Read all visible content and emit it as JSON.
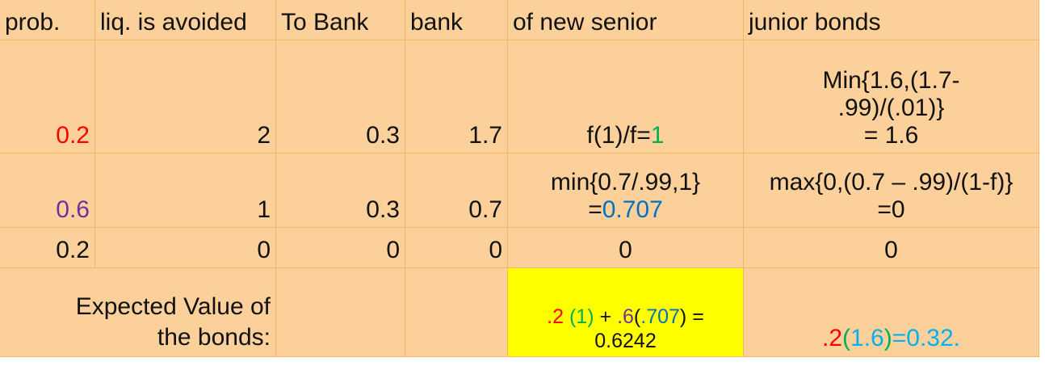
{
  "header": {
    "c1": "prob.",
    "c2": "liq. is avoided",
    "c3": "To Bank",
    "c4": "bank",
    "c5": "of new senior",
    "c6": "junior bonds"
  },
  "rows": [
    {
      "prob": "0.2",
      "liq": "2",
      "tobank": "0.3",
      "bank": "1.7",
      "senior": "f(1)/f=",
      "senior_val": "1",
      "junior_l1": "Min{1.6,(1.7-",
      "junior_l2": ".99)/(.01)}",
      "junior_l3": "= 1.6"
    },
    {
      "prob": "0.6",
      "liq": "1",
      "tobank": "0.3",
      "bank": "0.7",
      "senior_l1": "min{0.7/.99,1}",
      "senior_eq": "=",
      "senior_val": "0.707",
      "junior_l1": "max{0,(0.7 – .99)/(1-f)}",
      "junior_l2": "=0"
    },
    {
      "prob": "0.2",
      "liq": "0",
      "tobank": "0",
      "bank": "0",
      "senior": "0",
      "junior": "0"
    }
  ],
  "expected": {
    "label_l1": "Expected Value of",
    "label_l2": "the bonds:",
    "senior_p1": ".2",
    "senior_p2": "(1)",
    "senior_p3": "+",
    "senior_p4": ".6",
    "senior_p5": "(",
    "senior_p6": ".707",
    "senior_p7": ")",
    "senior_p8": "=",
    "senior_result": "0.6242",
    "junior_p1": ".2",
    "junior_p2": "(",
    "junior_p3": "1.6",
    "junior_p4": ")",
    "junior_p5": "=0.32."
  },
  "colors": {
    "cell_bg": "#fcd09a",
    "grid": "#f5b860",
    "highlight": "#ffff00",
    "red": "#ff0000",
    "green": "#00b050",
    "purple": "#7030a0",
    "blue": "#0070c0",
    "light_blue": "#00b0f0"
  }
}
